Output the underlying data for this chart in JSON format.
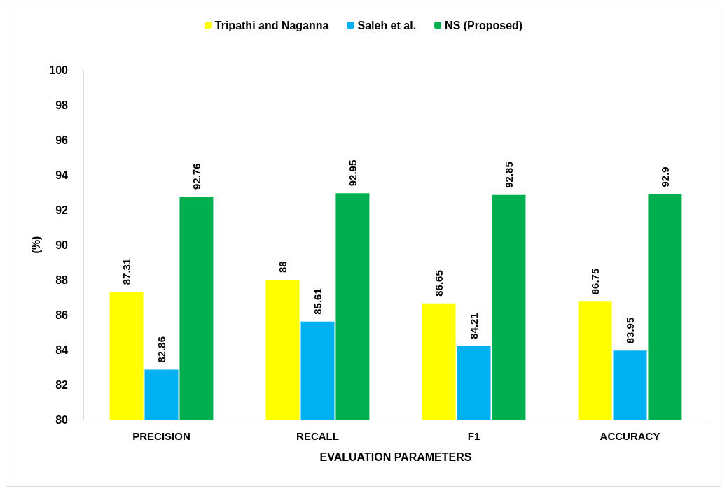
{
  "chart_data": {
    "type": "bar",
    "xlabel": "EVALUATION PARAMETERS",
    "ylabel": "(%)",
    "categories": [
      "PRECISION",
      "RECALL",
      "F1",
      "ACCURACY"
    ],
    "series": [
      {
        "name": "Tripathi and Naganna",
        "color": "#ffff00",
        "values": [
          87.31,
          88,
          86.65,
          86.75
        ]
      },
      {
        "name": "Saleh et al.",
        "color": "#00b0f0",
        "values": [
          82.86,
          85.61,
          84.21,
          83.95
        ]
      },
      {
        "name": "NS (Proposed)",
        "color": "#00b050",
        "values": [
          92.76,
          92.95,
          92.85,
          92.9
        ]
      }
    ],
    "ylim": [
      80,
      100
    ],
    "yticks": [
      80,
      82,
      84,
      86,
      88,
      90,
      92,
      94,
      96,
      98,
      100
    ],
    "data_labels": true,
    "grid": false,
    "legend": "top"
  }
}
